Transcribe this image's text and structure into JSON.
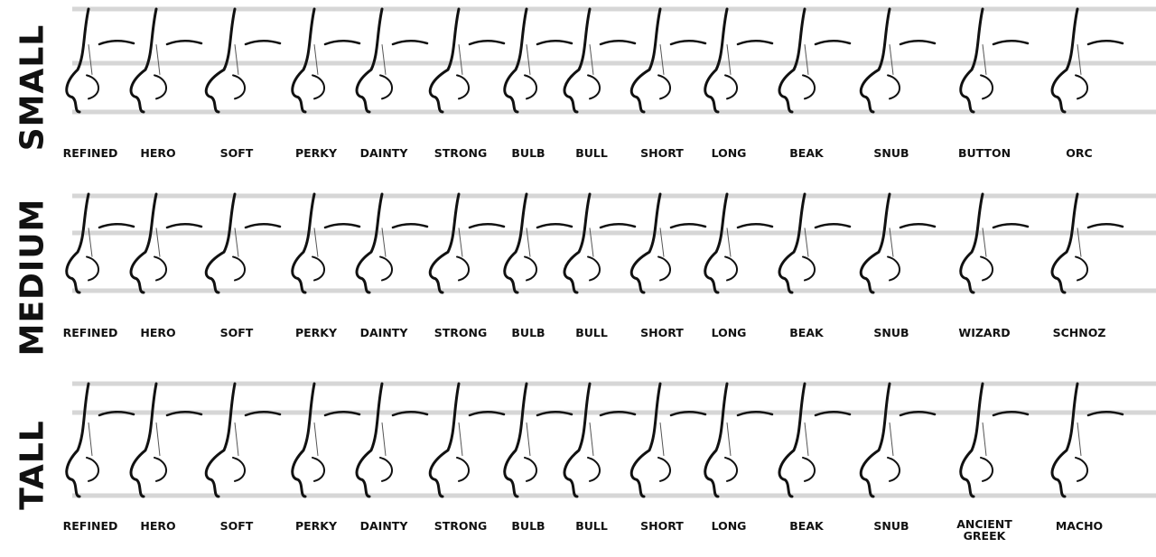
{
  "rows": [
    {
      "title": "SMALL",
      "labels": [
        "REFINED",
        "HERO",
        "SOFT",
        "PERKY",
        "DAINTY",
        "STRONG",
        "BULB",
        "BULL",
        "SHORT",
        "LONG",
        "BEAK",
        "SNUB",
        "BUTTON",
        "ORC"
      ]
    },
    {
      "title": "MEDIUM",
      "labels": [
        "REFINED",
        "HERO",
        "SOFT",
        "PERKY",
        "DAINTY",
        "STRONG",
        "BULB",
        "BULL",
        "SHORT",
        "LONG",
        "BEAK",
        "SNUB",
        "WIZARD",
        "SCHNOZ"
      ]
    },
    {
      "title": "TALL",
      "labels": [
        "REFINED",
        "HERO",
        "SOFT",
        "PERKY",
        "DAINTY",
        "STRONG",
        "BULB",
        "BULL",
        "SHORT",
        "LONG",
        "BEAK",
        "SNUB",
        "ANCIENT\nGREEK",
        "MACHO"
      ]
    }
  ],
  "colors": {
    "ink": "#111111",
    "guide": "#d6d6d6"
  }
}
